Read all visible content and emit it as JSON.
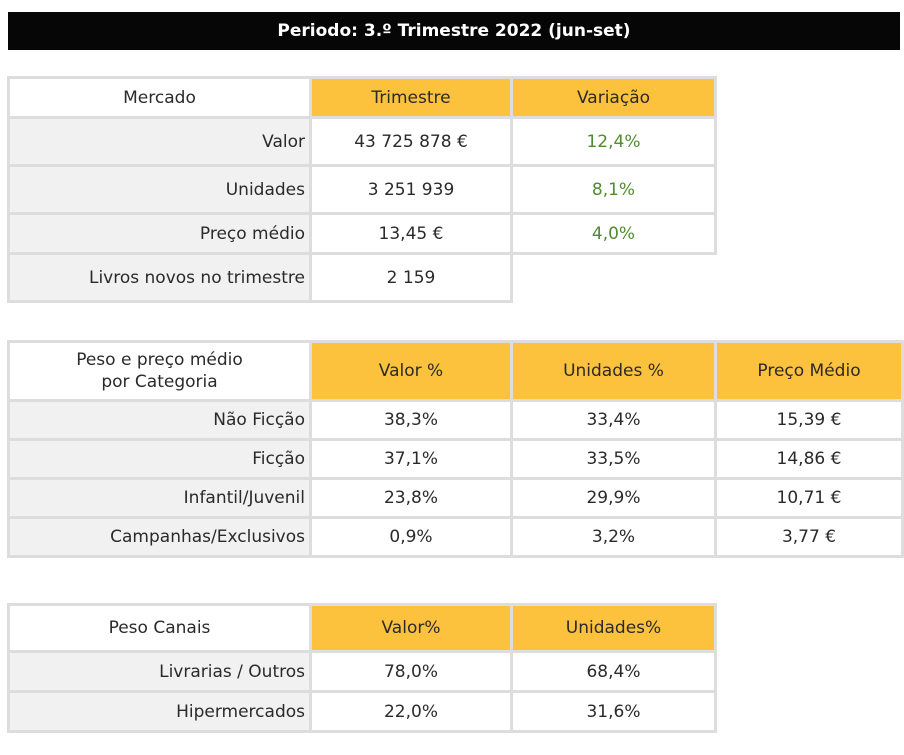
{
  "period_title": "Periodo: 3.º Trimestre 2022 (jun-set)",
  "mercado": {
    "headers": [
      "Mercado",
      "Trimestre",
      "Variação"
    ],
    "rows": [
      {
        "label": "Valor",
        "trimestre": "43 725 878 €",
        "variacao": "12,4%"
      },
      {
        "label": "Unidades",
        "trimestre": "3 251 939",
        "variacao": "8,1%"
      },
      {
        "label": "Preço médio",
        "trimestre": "13,45 €",
        "variacao": "4,0%"
      },
      {
        "label": "Livros novos no trimestre",
        "trimestre": "2 159",
        "variacao": ""
      }
    ]
  },
  "categoria": {
    "header_line1": "Peso e preço médio",
    "header_line2": "por Categoria",
    "headers": [
      "Valor %",
      "Unidades %",
      "Preço Médio"
    ],
    "rows": [
      {
        "label": "Não Ficção",
        "valor": "38,3%",
        "unidades": "33,4%",
        "preco": "15,39 €"
      },
      {
        "label": "Ficção",
        "valor": "37,1%",
        "unidades": "33,5%",
        "preco": "14,86 €"
      },
      {
        "label": "Infantil/Juvenil",
        "valor": "23,8%",
        "unidades": "29,9%",
        "preco": "10,71 €"
      },
      {
        "label": "Campanhas/Exclusivos",
        "valor": "0,9%",
        "unidades": "3,2%",
        "preco": "3,77 €"
      }
    ]
  },
  "canais": {
    "headers": [
      "Peso Canais",
      "Valor%",
      "Unidades%"
    ],
    "rows": [
      {
        "label": "Livrarias / Outros",
        "valor": "78,0%",
        "unidades": "68,4%"
      },
      {
        "label": "Hipermercados",
        "valor": "22,0%",
        "unidades": "31,6%"
      }
    ]
  },
  "colors": {
    "header_fill": "#fcc23e",
    "label_fill": "#f1f1f1",
    "positive_text": "#4f8b2f",
    "title_bar": "#060606"
  }
}
